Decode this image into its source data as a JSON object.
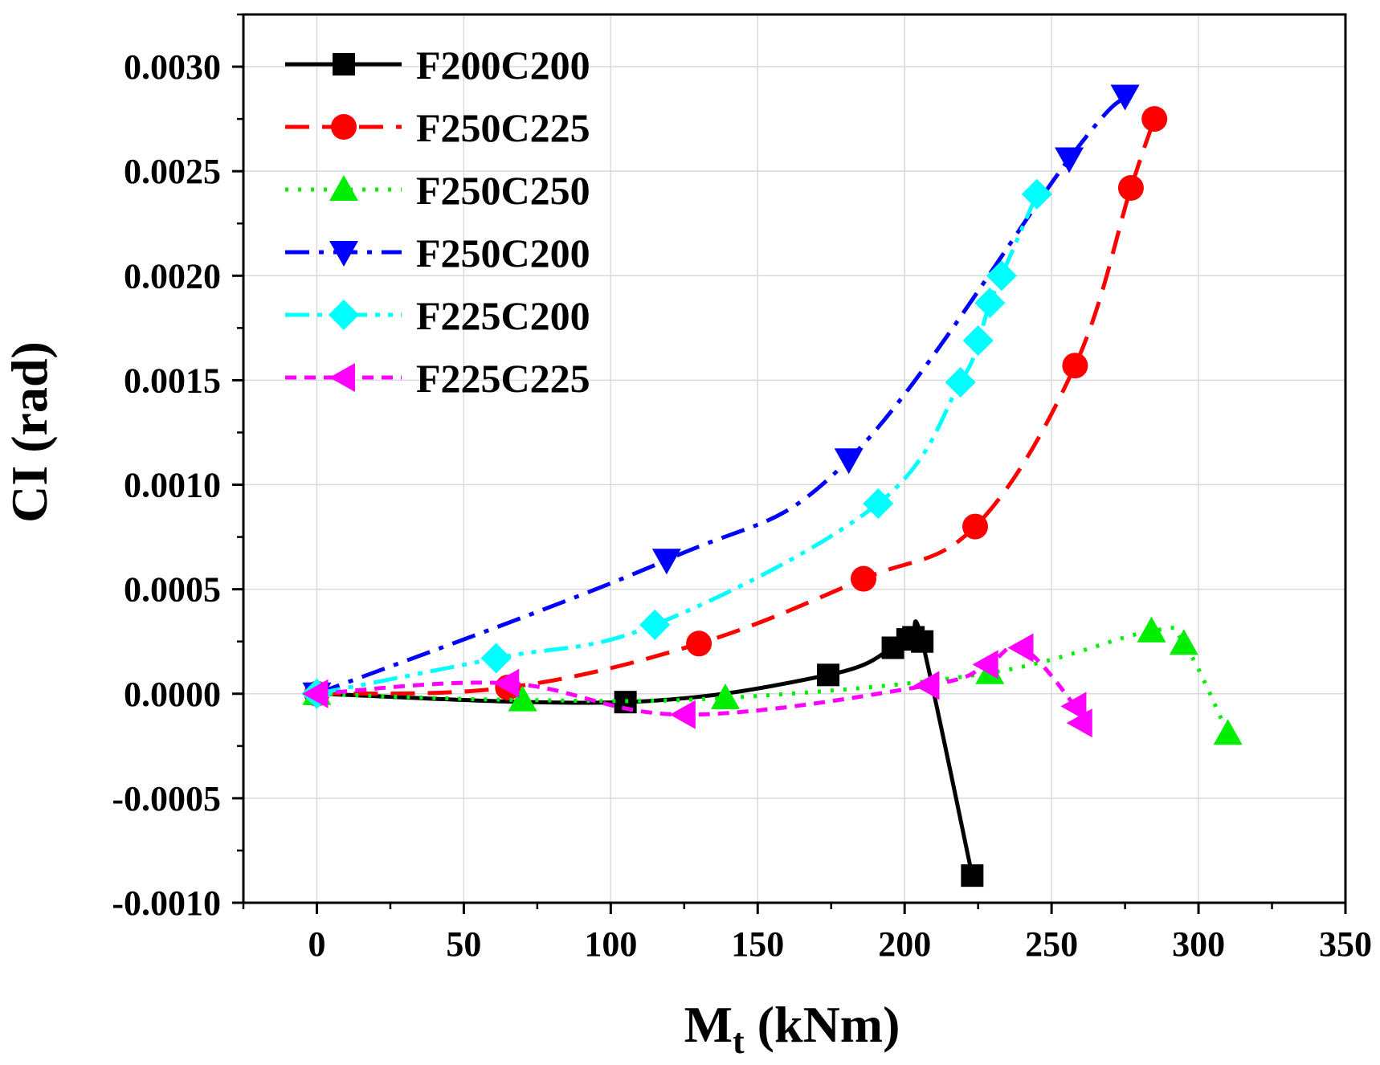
{
  "chart_data": {
    "type": "line",
    "title": "",
    "xlabel_main": "M",
    "xlabel_sub": "t",
    "xlabel_unit": " (kNm)",
    "ylabel": "CI (rad)",
    "xlim": [
      -25,
      350
    ],
    "ylim": [
      -0.001,
      0.00325
    ],
    "xticks": [
      0,
      50,
      100,
      150,
      200,
      250,
      300,
      350
    ],
    "xtick_labels": [
      "0",
      "50",
      "100",
      "150",
      "200",
      "250",
      "300",
      "350"
    ],
    "yticks": [
      -0.001,
      -0.0005,
      0,
      0.0005,
      0.001,
      0.0015,
      0.002,
      0.0025,
      0.003
    ],
    "ytick_labels": [
      "-0.0010",
      "-0.0005",
      "0.0000",
      "0.0005",
      "0.0010",
      "0.0015",
      "0.0020",
      "0.0025",
      "0.0030"
    ],
    "grid": true,
    "legend_position": "top-left",
    "series": [
      {
        "name": "F200C200",
        "color": "#000000",
        "marker": "square",
        "dash": "solid",
        "x": [
          0,
          105,
          174,
          196,
          201,
          203,
          206,
          223
        ],
        "y": [
          0.0,
          -4e-05,
          9e-05,
          0.00022,
          0.00026,
          0.00027,
          0.00025,
          -0.00087
        ]
      },
      {
        "name": "F250C225",
        "color": "#ff0000",
        "marker": "circle",
        "dash": "dash",
        "x": [
          0,
          65,
          130,
          186,
          224,
          258,
          277,
          285
        ],
        "y": [
          0.0,
          3e-05,
          0.00024,
          0.00055,
          0.0008,
          0.00157,
          0.00242,
          0.00275
        ]
      },
      {
        "name": "F250C250",
        "color": "#00ee00",
        "marker": "triangle-up",
        "dash": "dot",
        "x": [
          0,
          70,
          139,
          229,
          284,
          295,
          310
        ],
        "y": [
          0.0,
          -3e-05,
          -2e-05,
          0.0001,
          0.0003,
          0.00024,
          -0.00019
        ]
      },
      {
        "name": "F250C200",
        "color": "#0000ff",
        "marker": "triangle-down",
        "dash": "dashdot",
        "x": [
          0,
          119,
          181,
          256,
          275
        ],
        "y": [
          0.0,
          0.00064,
          0.00112,
          0.00256,
          0.00286
        ]
      },
      {
        "name": "F225C200",
        "color": "#00ffff",
        "marker": "diamond",
        "dash": "dashdotdot",
        "x": [
          0,
          61,
          115,
          191,
          219,
          225,
          229,
          233,
          245
        ],
        "y": [
          0.0,
          0.00017,
          0.00033,
          0.00091,
          0.00149,
          0.00169,
          0.00187,
          0.002,
          0.00239
        ]
      },
      {
        "name": "F225C225",
        "color": "#ff00ff",
        "marker": "triangle-left",
        "dash": "shortdash",
        "x": [
          0,
          65,
          125,
          208,
          228,
          240,
          258,
          260
        ],
        "y": [
          0.0,
          5e-05,
          -0.0001,
          4e-05,
          0.00014,
          0.00022,
          -6e-05,
          -0.00014
        ]
      }
    ]
  }
}
